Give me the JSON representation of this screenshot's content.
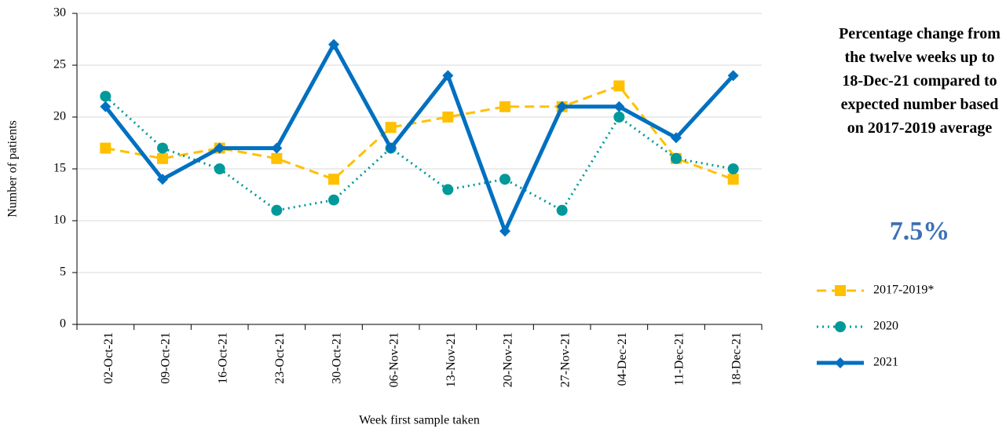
{
  "chart_data": {
    "type": "line",
    "x_label": "Week first sample taken",
    "y_label": "Number of patients",
    "categories": [
      "02-Oct-21",
      "09-Oct-21",
      "16-Oct-21",
      "23-Oct-21",
      "30-Oct-21",
      "06-Nov-21",
      "13-Nov-21",
      "20-Nov-21",
      "27-Nov-21",
      "04-Dec-21",
      "11-Dec-21",
      "18-Dec-21"
    ],
    "series": [
      {
        "name": "2017-2019*",
        "color": "#ffc000",
        "values": [
          17,
          16,
          17,
          16,
          14,
          19,
          20,
          21,
          21,
          23,
          16,
          14
        ]
      },
      {
        "name": "2020",
        "color": "#009999",
        "values": [
          22,
          17,
          15,
          11,
          12,
          17,
          13,
          14,
          11,
          20,
          16,
          15
        ]
      },
      {
        "name": "2021",
        "color": "#0070c0",
        "values": [
          21,
          14,
          17,
          17,
          27,
          17,
          24,
          9,
          21,
          21,
          18,
          24
        ]
      }
    ],
    "ylim": [
      0,
      30
    ],
    "yticks": [
      0,
      5,
      10,
      15,
      20,
      25,
      30
    ],
    "grid": true,
    "annotation": "Percentage change from the twelve weeks up to 18-Dec-21 compared to expected number based on 2017-2019 average",
    "highlight": "7.5%"
  }
}
